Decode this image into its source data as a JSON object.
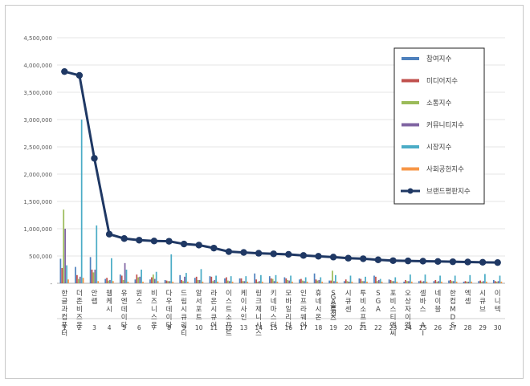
{
  "chart_data": {
    "type": "bar",
    "title": "",
    "xlabel": "",
    "ylabel": "",
    "ylim": [
      0,
      4500000
    ],
    "y_ticks": [
      {
        "value": 0,
        "label": "-"
      },
      {
        "value": 500000,
        "label": "500,000"
      },
      {
        "value": 1000000,
        "label": "1,000,000"
      },
      {
        "value": 1500000,
        "label": "1,500,000"
      },
      {
        "value": 2000000,
        "label": "2,000,000"
      },
      {
        "value": 2500000,
        "label": "2,500,000"
      },
      {
        "value": 3000000,
        "label": "3,000,000"
      },
      {
        "value": 3500000,
        "label": "3,500,000"
      },
      {
        "value": 4000000,
        "label": "4,000,000"
      },
      {
        "value": 4500000,
        "label": "4,500,000"
      }
    ],
    "categories": [
      "한글과컴퓨터",
      "더존비즈온",
      "안랩",
      "웹케시",
      "유엔데이타",
      "윈스",
      "비즈니스온",
      "다우데이타",
      "드림시큐리티",
      "알서포트",
      "라온시큐어",
      "이스트소프트",
      "케이사인",
      "링크제니시스",
      "키네마스터",
      "모바일리더",
      "인프라웨어",
      "휴네시온",
      "SGA솔루션즈",
      "시큐센",
      "투비소프트",
      "SGA",
      "포비스티앤씨",
      "오상자이엘",
      "셀바스 AI",
      "네이블",
      "한컴MDS",
      "엑셈",
      "시큐브",
      "이니텍"
    ],
    "ranks": [
      "1",
      "2",
      "3",
      "4",
      "5",
      "6",
      "7",
      "8",
      "9",
      "10",
      "11",
      "12",
      "13",
      "14",
      "15",
      "16",
      "17",
      "18",
      "19",
      "20",
      "21",
      "22",
      "23",
      "24",
      "25",
      "26",
      "27",
      "28",
      "29",
      "30"
    ],
    "series": [
      {
        "name": "참여지수",
        "color": "#4f81bd",
        "values": [
          450000,
          300000,
          480000,
          80000,
          160000,
          70000,
          70000,
          60000,
          150000,
          100000,
          130000,
          90000,
          90000,
          180000,
          130000,
          110000,
          70000,
          180000,
          50000,
          40000,
          90000,
          140000,
          70000,
          30000,
          40000,
          40000,
          50000,
          30000,
          40000,
          60000
        ]
      },
      {
        "name": "미디어지수",
        "color": "#c0504d",
        "values": [
          280000,
          150000,
          250000,
          100000,
          140000,
          160000,
          110000,
          50000,
          60000,
          120000,
          120000,
          110000,
          90000,
          70000,
          90000,
          90000,
          80000,
          70000,
          50000,
          70000,
          80000,
          120000,
          60000,
          60000,
          50000,
          60000,
          60000,
          40000,
          50000,
          40000
        ]
      },
      {
        "name": "소통지수",
        "color": "#9bbb59",
        "values": [
          1350000,
          80000,
          200000,
          50000,
          60000,
          110000,
          160000,
          40000,
          40000,
          60000,
          40000,
          50000,
          40000,
          30000,
          80000,
          60000,
          50000,
          50000,
          230000,
          40000,
          40000,
          40000,
          40000,
          40000,
          30000,
          30000,
          40000,
          30000,
          30000,
          30000
        ]
      },
      {
        "name": "커뮤니티지수",
        "color": "#8064a2",
        "values": [
          1000000,
          120000,
          250000,
          60000,
          370000,
          120000,
          80000,
          40000,
          120000,
          60000,
          60000,
          40000,
          40000,
          40000,
          40000,
          50000,
          40000,
          60000,
          40000,
          30000,
          40000,
          60000,
          40000,
          40000,
          40000,
          40000,
          40000,
          30000,
          40000,
          40000
        ]
      },
      {
        "name": "시장지수",
        "color": "#4bacc6",
        "values": [
          330000,
          3000000,
          1060000,
          460000,
          250000,
          250000,
          210000,
          530000,
          190000,
          260000,
          140000,
          130000,
          130000,
          150000,
          150000,
          140000,
          110000,
          110000,
          150000,
          140000,
          120000,
          80000,
          110000,
          160000,
          160000,
          140000,
          140000,
          150000,
          170000,
          140000
        ]
      },
      {
        "name": "사회공헌지수",
        "color": "#f79646",
        "values": [
          70000,
          100000,
          40000,
          40000,
          30000,
          30000,
          40000,
          30000,
          30000,
          30000,
          30000,
          30000,
          30000,
          30000,
          30000,
          30000,
          30000,
          30000,
          30000,
          30000,
          30000,
          30000,
          30000,
          30000,
          30000,
          30000,
          30000,
          30000,
          30000,
          30000
        ]
      },
      {
        "name": "브랜드평판지수",
        "color": "#1f3864",
        "type": "line",
        "values": [
          3880000,
          3810000,
          2290000,
          900000,
          820000,
          790000,
          775000,
          770000,
          720000,
          700000,
          645000,
          580000,
          565000,
          550000,
          540000,
          530000,
          510000,
          495000,
          480000,
          460000,
          450000,
          430000,
          415000,
          410000,
          405000,
          400000,
          395000,
          390000,
          385000,
          380000
        ]
      }
    ],
    "legend_position": "top-right"
  }
}
